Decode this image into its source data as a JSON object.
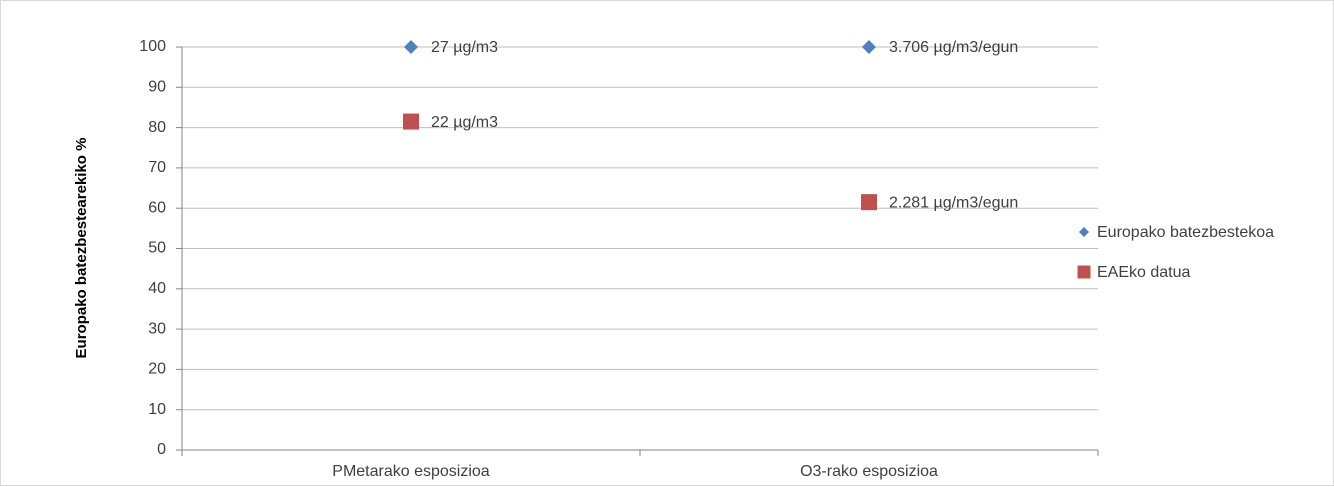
{
  "chart_data": {
    "type": "scatter",
    "ylabel": "Europako batezbestearekiko %",
    "xlabel": "",
    "title": "",
    "ylim": [
      0,
      100
    ],
    "yticks": [
      0,
      10,
      20,
      30,
      40,
      50,
      60,
      70,
      80,
      90,
      100
    ],
    "categories": [
      "PMetarako esposizioa",
      "O3-rako esposizioa"
    ],
    "grid": true,
    "legend_position": "right",
    "series": [
      {
        "name": "Europako batezbestekoa",
        "marker": "diamond",
        "color": "#4f81bd",
        "values": [
          100,
          100
        ],
        "labels": [
          "27 µg/m3",
          "3.706 µg/m3/egun"
        ]
      },
      {
        "name": "EAEko datua",
        "marker": "square",
        "color": "#c0504d",
        "values": [
          81.5,
          61.5
        ],
        "labels": [
          "22 µg/m3",
          "2.281 µg/m3/egun"
        ]
      }
    ]
  }
}
